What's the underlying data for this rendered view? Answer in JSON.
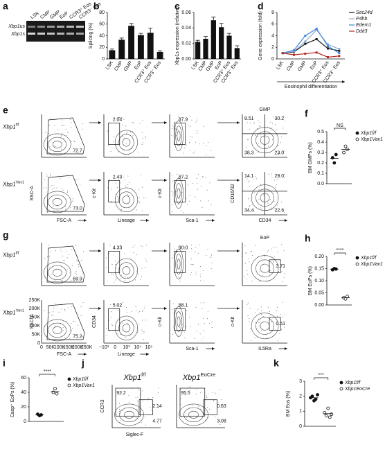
{
  "panel_letters": [
    "a",
    "b",
    "c",
    "d",
    "e",
    "f",
    "g",
    "h",
    "i",
    "j",
    "k"
  ],
  "gel": {
    "lanes": [
      "LSK",
      "CMP",
      "GMP",
      "EoP",
      "CCR3⁺ Eos",
      "CCR3⁻ Eos"
    ],
    "bands": [
      "Xbp1us",
      "Xbp1s"
    ]
  },
  "flow_rows": [
    {
      "genotypes": [
        {
          "gene": "Xbp1",
          "allele": "f/f"
        },
        {
          "gene": "Xbp1",
          "allele": "Vav1"
        }
      ],
      "gate_title": "GMP",
      "plots": [
        {
          "x_label": "FSC-A",
          "y_label": "SSC-A",
          "gates": [
            [
              "72.7"
            ],
            [
              "73.0"
            ]
          ]
        },
        {
          "x_label": "Lineage",
          "y_label": "c-Kit",
          "gates": [
            [
              "2.04"
            ],
            [
              "2.43"
            ]
          ]
        },
        {
          "x_label": "Sca-1",
          "y_label": "c-Kit",
          "gates": [
            [
              "87.9"
            ],
            [
              "87.2"
            ]
          ]
        },
        {
          "x_label": "CD34",
          "y_label": "CD16/32",
          "gates": [
            [
              "8.51",
              "30.2",
              "38.3",
              "23.0"
            ],
            [
              "14.1",
              "29.0",
              "34.4",
              "22.6"
            ]
          ]
        }
      ]
    },
    {
      "genotypes": [
        {
          "gene": "Xbp1",
          "allele": "f/f"
        },
        {
          "gene": "Xbp1",
          "allele": "Vav1"
        }
      ],
      "gate_title": "EoP",
      "plots": [
        {
          "x_label": "FSC-A",
          "y_label": "SSC-A",
          "gates": [
            [
              "69.9"
            ],
            [
              "75.2"
            ]
          ],
          "x_ticks": [
            "0",
            "50K",
            "100K",
            "150K",
            "200K",
            "250K"
          ],
          "y_ticks": [
            "0",
            "50K",
            "100K",
            "150K",
            "200K",
            "250K"
          ]
        },
        {
          "x_label": "Lineage",
          "y_label": "CD34",
          "gates": [
            [
              "4.33"
            ],
            [
              "5.02"
            ]
          ],
          "x_ticks": [
            "−10³",
            "0",
            "10³",
            "10⁴",
            "10⁵"
          ]
        },
        {
          "x_label": "Sca-1",
          "y_label": "c-Kit",
          "gates": [
            [
              "90.0"
            ],
            [
              "88.1"
            ]
          ]
        },
        {
          "x_label": "IL5Ra",
          "y_label": "c-Kit",
          "gates": [
            [
              "3.71"
            ],
            [
              "0.51"
            ]
          ]
        }
      ]
    }
  ],
  "panel_j": {
    "titles": [
      {
        "gene": "Xbp1",
        "allele": "f/f"
      },
      {
        "gene": "Xbp1",
        "allele": "EoCre"
      }
    ],
    "x_label": "Siglec-F",
    "y_label": "CCR3",
    "gates": [
      [
        "92.2",
        "2.14",
        "4.77"
      ],
      [
        "95.5",
        "0.53",
        "3.08"
      ]
    ]
  },
  "chart_data": [
    {
      "type": "bar",
      "y_label": "Splicing (%)",
      "categories": [
        "LSK",
        "CMP",
        "GMP",
        "EoP",
        "CCR3⁺ Eos",
        "CCR3⁻ Eos"
      ],
      "values": [
        15,
        33,
        57,
        41,
        45,
        12
      ],
      "errors": [
        2,
        3,
        4,
        3,
        8,
        2
      ],
      "color": "#111111",
      "ylim": [
        0,
        80
      ],
      "yticks": [
        0,
        20,
        40,
        60,
        80
      ]
    },
    {
      "type": "bar",
      "y_label": "Xbp1s expression (relative)",
      "categories": [
        "LSK",
        "CMP",
        "GMP",
        "EoP",
        "CCR3⁺ Eos",
        "CCR3⁻ Eos"
      ],
      "values": [
        0.022,
        0.026,
        0.05,
        0.041,
        0.03,
        0.014
      ],
      "errors": [
        0.002,
        0.003,
        0.004,
        0.005,
        0.003,
        0.003
      ],
      "color": "#111111",
      "ylim": [
        0,
        0.06
      ],
      "yticks": [
        {
          "value": 0,
          "label": "0.00"
        },
        {
          "value": 0.02,
          "label": "0.02"
        },
        {
          "value": 0.04,
          "label": "0.04"
        },
        {
          "value": 0.06,
          "label": "0.06"
        }
      ]
    },
    {
      "type": "line",
      "y_label": "Gene expression (fold)",
      "x_label": "Eosinophil differentiation",
      "categories": [
        "LSK",
        "CMP",
        "GMP",
        "EoP",
        "CCR3⁺ Eos",
        "CCR3⁻ Eos"
      ],
      "ylim": [
        0,
        8
      ],
      "yticks": [
        0,
        2,
        4,
        6,
        8
      ],
      "series": [
        {
          "name": "Sec24d",
          "color": "#111111",
          "values": [
            1,
            1.2,
            2.6,
            3.4,
            1.8,
            1.4
          ]
        },
        {
          "name": "P4hb",
          "color": "#8fa8cc",
          "values": [
            1,
            1.3,
            3,
            5,
            2.5,
            1.7
          ]
        },
        {
          "name": "Edem1",
          "color": "#3d86e0",
          "values": [
            1,
            1.5,
            4,
            5.2,
            2.2,
            1
          ]
        },
        {
          "name": "Ddit3",
          "color": "#b3261e",
          "values": [
            1,
            0.7,
            0.9,
            1.1,
            0.3,
            0.5
          ]
        }
      ]
    },
    {
      "type": "dot",
      "y_label": "BM GMPs (%)",
      "annotation": "NS",
      "ylim": [
        0,
        0.5
      ],
      "yticks": [
        {
          "value": 0,
          "label": "0.0"
        },
        {
          "value": 0.1,
          "label": "0.1"
        },
        {
          "value": 0.2,
          "label": "0.2"
        },
        {
          "value": 0.3,
          "label": "0.3"
        },
        {
          "value": 0.4,
          "label": "0.4"
        },
        {
          "value": 0.5,
          "label": "0.5"
        }
      ],
      "series": [
        {
          "name": "Xbp1f/f",
          "marker": "filled",
          "values": [
            0.25,
            0.2,
            0.28
          ]
        },
        {
          "name": "Xbp1Vav1",
          "marker": "open",
          "values": [
            0.3,
            0.36,
            0.33
          ]
        }
      ]
    },
    {
      "type": "dot",
      "y_label": "BM EoPs (%)",
      "annotation": "****",
      "ylim": [
        0,
        0.2
      ],
      "yticks": [
        {
          "value": 0,
          "label": "0.00"
        },
        {
          "value": 0.05,
          "label": "0.05"
        },
        {
          "value": 0.1,
          "label": "0.10"
        },
        {
          "value": 0.15,
          "label": "0.15"
        },
        {
          "value": 0.2,
          "label": "0.20"
        }
      ],
      "series": [
        {
          "name": "Xbp1f/f",
          "marker": "filled",
          "values": [
            0.145,
            0.15,
            0.148
          ]
        },
        {
          "name": "Xbp1Vav1",
          "marker": "open",
          "values": [
            0.03,
            0.025,
            0.035
          ]
        }
      ]
    },
    {
      "type": "dot",
      "y_label": "Casp⁺ EoPs (%)",
      "annotation": "****",
      "ylim": [
        0,
        60
      ],
      "yticks": [
        0,
        20,
        40,
        60
      ],
      "series": [
        {
          "name": "Xbp1f/f",
          "marker": "filled",
          "values": [
            10,
            8,
            9
          ]
        },
        {
          "name": "Xbp1Vav1",
          "marker": "open",
          "values": [
            40,
            45,
            38
          ]
        }
      ]
    },
    {
      "type": "dot",
      "y_label": "BM Eos (%)",
      "annotation": "***",
      "ylim": [
        0,
        3
      ],
      "yticks": [
        0,
        1,
        2,
        3
      ],
      "series": [
        {
          "name": "Xbp1f/f",
          "marker": "filled",
          "values": [
            1.9,
            2,
            1.7,
            1.8,
            2.1
          ]
        },
        {
          "name": "Xbp1EoCre",
          "marker": "open",
          "values": [
            0.9,
            0.7,
            1.2,
            0.6,
            0.8
          ]
        }
      ]
    }
  ]
}
